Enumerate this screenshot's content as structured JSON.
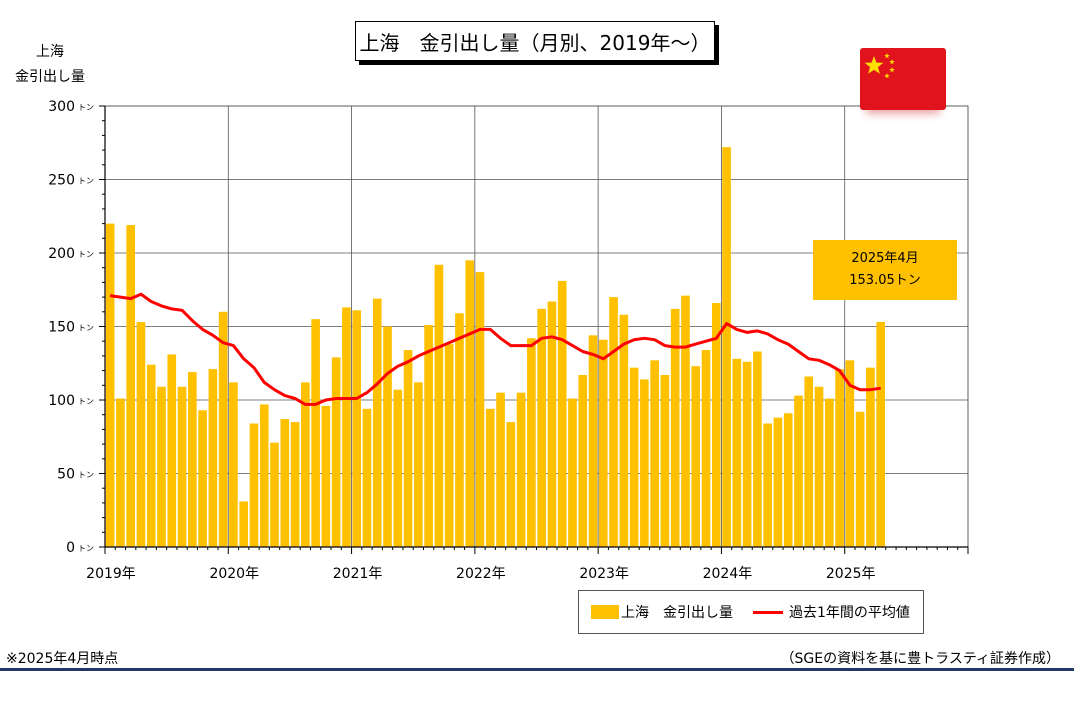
{
  "title": "上海　金引出し量（月別、2019年～）",
  "ylabel": [
    "上海",
    "金引出し量"
  ],
  "callout": {
    "line1": "2025年4月",
    "line2": "153.05トン"
  },
  "legend": {
    "bar": "上海　金引出し量",
    "line": "過去1年間の平均値"
  },
  "note_left": "※2025年4月時点",
  "note_right": "（SGEの資料を基に豊トラスティ証券作成）",
  "colors": {
    "bar": "#ffc000",
    "line": "#ff0000",
    "flag": "#e1141d",
    "rule": "#1f3864"
  },
  "chart_data": {
    "type": "bar",
    "ylim": [
      0,
      300
    ],
    "yticks": [
      0,
      50,
      100,
      150,
      200,
      250,
      300
    ],
    "ytick_unit": "トン",
    "x_range_months": [
      "2019-01",
      "2025-12"
    ],
    "year_labels": [
      "2019年",
      "2020年",
      "2021年",
      "2022年",
      "2023年",
      "2024年",
      "2025年"
    ],
    "start_month": "2019-01",
    "series": [
      {
        "name": "上海　金引出し量",
        "type": "bar",
        "values": [
          220,
          101,
          219,
          153,
          124,
          109,
          131,
          109,
          119,
          93,
          121,
          160,
          112,
          31,
          84,
          97,
          71,
          87,
          85,
          112,
          155,
          96,
          129,
          163,
          161,
          94,
          169,
          150,
          107,
          134,
          112,
          151,
          192,
          138,
          159,
          195,
          187,
          94,
          105,
          85,
          105,
          142,
          162,
          167,
          181,
          101,
          117,
          144,
          141,
          170,
          158,
          122,
          114,
          127,
          117,
          162,
          171,
          123,
          134,
          166,
          272,
          128,
          126,
          133,
          84,
          88,
          91,
          103,
          116,
          109,
          101,
          121,
          127,
          92,
          122,
          153.05
        ]
      },
      {
        "name": "過去1年間の平均値",
        "type": "line",
        "values": [
          171,
          170,
          169,
          172,
          167,
          164,
          162,
          161,
          154,
          148,
          144,
          139,
          137,
          128,
          122,
          112,
          107,
          103,
          101,
          97,
          97,
          100,
          101,
          101,
          101,
          105,
          111,
          118,
          123,
          126,
          130,
          133,
          136,
          139,
          142,
          145,
          148,
          148,
          142,
          137,
          137,
          137,
          142,
          143,
          141,
          137,
          133,
          131,
          128,
          133,
          138,
          141,
          142,
          141,
          137,
          136,
          136,
          138,
          140,
          142,
          152,
          148,
          146,
          147,
          145,
          141,
          138,
          133,
          128,
          127,
          124,
          120,
          110,
          107,
          107,
          108
        ]
      }
    ]
  }
}
